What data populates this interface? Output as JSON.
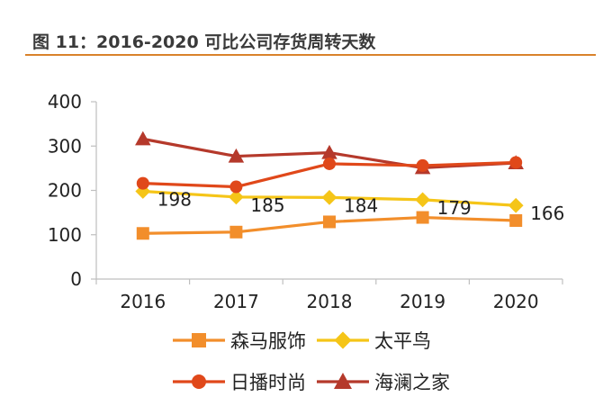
{
  "title": "图 11：2016-2020 可比公司存货周转天数",
  "colors": {
    "series_0": "#f28e2b",
    "series_1": "#f5c518",
    "series_2": "#e0481a",
    "series_3": "#b5392b",
    "axis": "#bfbfbf",
    "text": "#222222",
    "title_rule": "#d9822b"
  },
  "chart_data": {
    "type": "line",
    "x": [
      "2016",
      "2017",
      "2018",
      "2019",
      "2020"
    ],
    "ylim": [
      0,
      400
    ],
    "yticks": [
      "0",
      "100",
      "200",
      "300",
      "400"
    ],
    "grid": false,
    "legend_placement": "bottom",
    "series": [
      {
        "name": "森马服饰",
        "marker": "square",
        "values": [
          103,
          106,
          129,
          139,
          132
        ]
      },
      {
        "name": "太平鸟",
        "marker": "diamond",
        "values": [
          198,
          185,
          184,
          179,
          166
        ],
        "labels": [
          "198",
          "185",
          "184",
          "179",
          "166"
        ]
      },
      {
        "name": "日播时尚",
        "marker": "circle",
        "values": [
          216,
          208,
          260,
          256,
          263
        ]
      },
      {
        "name": "海澜之家",
        "marker": "triangle",
        "values": [
          316,
          277,
          285,
          251,
          262
        ]
      }
    ]
  }
}
